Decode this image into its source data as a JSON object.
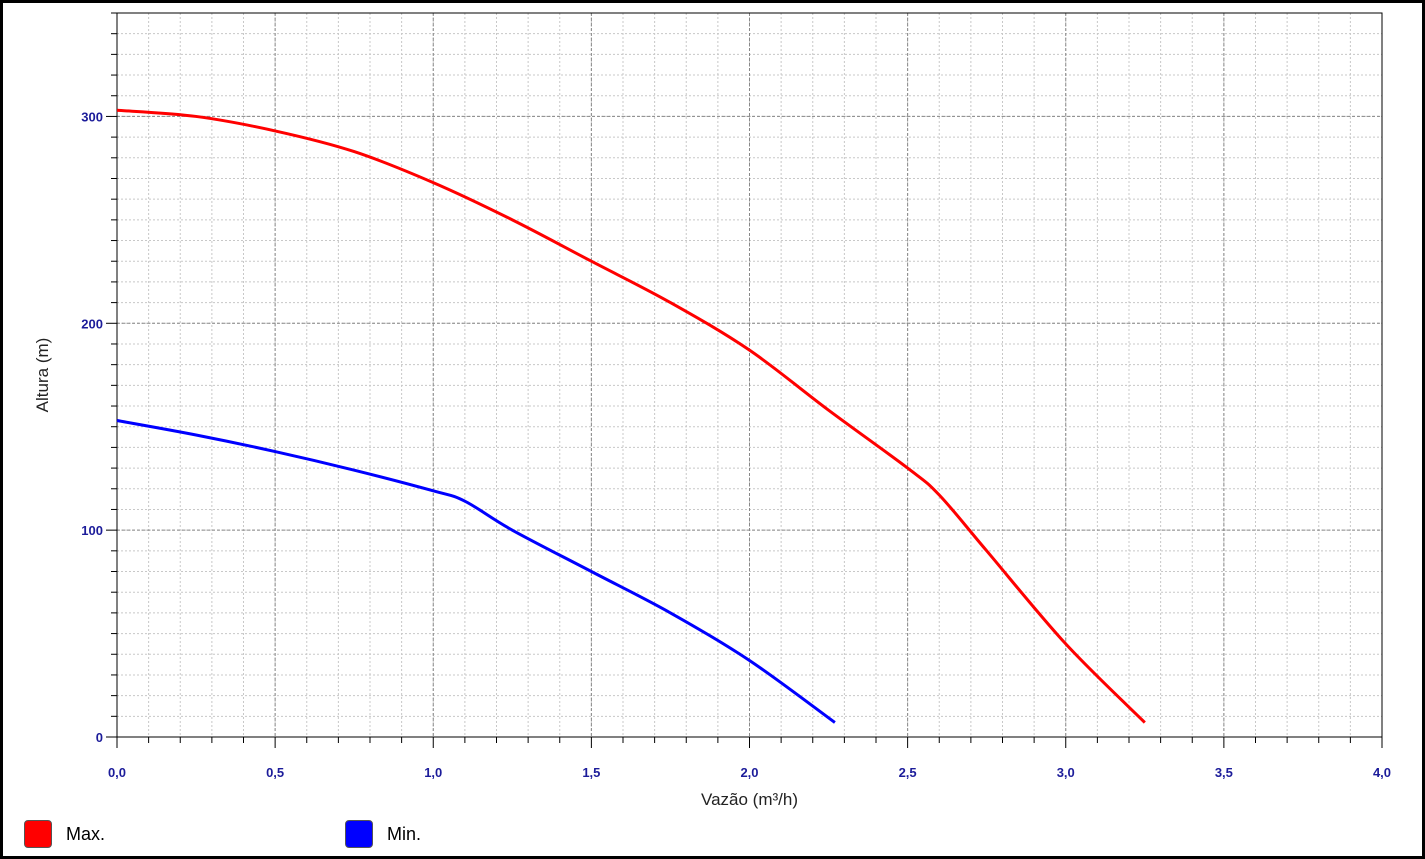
{
  "chart_data": {
    "type": "line",
    "title": "",
    "xlabel": "Vazão (m³/h)",
    "ylabel": "Altura (m)",
    "xlim": [
      0,
      4
    ],
    "ylim": [
      0,
      350
    ],
    "x_ticks": [
      "0,0",
      "0,5",
      "1,0",
      "1,5",
      "2,0",
      "2,5",
      "3,0",
      "3,5",
      "4,0"
    ],
    "x_tick_values": [
      0,
      0.5,
      1,
      1.5,
      2,
      2.5,
      3,
      3.5,
      4
    ],
    "y_ticks": [
      "0",
      "100",
      "200",
      "300"
    ],
    "y_tick_values": [
      0,
      100,
      200,
      300
    ],
    "grid": true,
    "legend_position": "bottom-left",
    "series": [
      {
        "name": "Max.",
        "color": "#ff0000",
        "x": [
          0,
          0.25,
          0.5,
          0.75,
          1.0,
          1.25,
          1.5,
          1.75,
          2.0,
          2.25,
          2.5,
          2.6,
          2.75,
          3.0,
          3.25
        ],
        "y": [
          303,
          300,
          293,
          283,
          268,
          250,
          230,
          210,
          187,
          158,
          130,
          117,
          90,
          45,
          7
        ]
      },
      {
        "name": "Min.",
        "color": "#0000ff",
        "x": [
          0,
          0.25,
          0.5,
          0.75,
          1.0,
          1.1,
          1.25,
          1.5,
          1.75,
          2.0,
          2.27
        ],
        "y": [
          153,
          146,
          138,
          129,
          119,
          114,
          100,
          80,
          60,
          37,
          7
        ]
      }
    ]
  }
}
